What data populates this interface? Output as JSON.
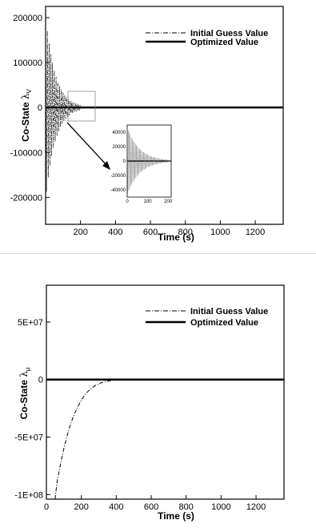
{
  "chart_data": [
    {
      "type": "line",
      "xlabel": "Time (s)",
      "ylabel_prefix": "Co-State ",
      "ylabel_symbol": "λ",
      "ylabel_sub": "V",
      "xlim": [
        0,
        1360
      ],
      "ylim": [
        -260000,
        225000
      ],
      "xticks": [
        200,
        400,
        600,
        800,
        1000,
        1200
      ],
      "yticks": [
        200000,
        100000,
        0,
        -100000,
        -200000
      ],
      "ytick_labels": [
        "200000",
        "100000",
        "0",
        "-100000",
        "-200000"
      ],
      "legend": {
        "placement": "top-right",
        "entries": [
          "Initial Guess Value",
          "Optimized Value"
        ]
      },
      "series": [
        {
          "name": "Initial Guess Value",
          "style": "dash-dot",
          "color": "#000000",
          "description_values": {
            "period_s": 10,
            "amp0": 205000,
            "decay_s": 55,
            "t_end": 200
          }
        },
        {
          "name": "Optimized Value",
          "style": "solid-thick",
          "color": "#000000",
          "x": [
            0,
            1360
          ],
          "y": [
            0,
            0
          ]
        }
      ],
      "inset": {
        "xticks": [
          0,
          100,
          200
        ],
        "xlim": [
          0,
          215
        ],
        "ylim": [
          -50000,
          50000
        ],
        "yticks": [
          40000,
          20000,
          0,
          -20000,
          -40000
        ],
        "ytick_labels": [
          "40000",
          "20000",
          "0",
          "-20000",
          "-40000"
        ]
      }
    },
    {
      "type": "line",
      "xlabel": "Time (s)",
      "ylabel_prefix": "Co-State ",
      "ylabel_symbol": "λ",
      "ylabel_sub": "μ",
      "xlim": [
        0,
        1360
      ],
      "ylim": [
        -104000000,
        82000000
      ],
      "xticks": [
        0,
        200,
        400,
        600,
        800,
        1000,
        1200
      ],
      "yticks": [
        50000000,
        0,
        -50000000,
        -100000000
      ],
      "ytick_labels": [
        "5E+07",
        "0",
        "-5E+07",
        "-1E+08"
      ],
      "legend": {
        "placement": "top-right",
        "entries": [
          "Initial Guess Value",
          "Optimized Value"
        ]
      },
      "series": [
        {
          "name": "Initial Guess Value",
          "style": "dash-dot",
          "color": "#000000",
          "x": [
            50,
            60,
            80,
            100,
            120,
            140,
            160,
            180,
            200,
            220,
            240,
            260,
            280,
            300,
            320,
            340,
            360,
            380,
            400,
            420,
            440,
            460
          ],
          "y": [
            -104000000,
            -90000000,
            -74000000,
            -60000000,
            -48000000,
            -38000000,
            -30000000,
            -23500000,
            -18000000,
            -13500000,
            -10000000,
            -7300000,
            -5200000,
            -3700000,
            -2500000,
            -1700000,
            -1100000,
            -650000,
            -350000,
            -150000,
            -50000,
            0
          ]
        },
        {
          "name": "Optimized Value",
          "style": "solid-thick",
          "color": "#000000",
          "x": [
            0,
            1360
          ],
          "y": [
            0,
            0
          ]
        }
      ]
    }
  ]
}
